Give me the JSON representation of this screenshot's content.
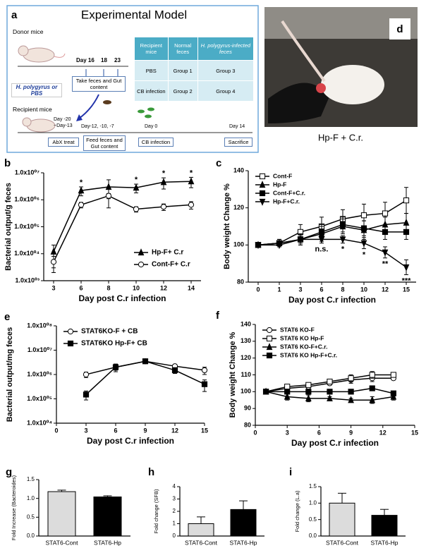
{
  "diagram": {
    "panel_label": "a",
    "title": "Experimental Model",
    "donor_label": "Donor mice",
    "donor_treatment": "H. polygyrus or PBS",
    "donor_days": [
      "Day 16",
      "18",
      "23"
    ],
    "donor_step": "Take feces and Gut content",
    "recipient_label": "Recipient mice",
    "recipient_days": [
      "Day -20",
      "~Day-13",
      "Day-12, -10, -7",
      "Day 0",
      "Day 14"
    ],
    "recipient_steps": [
      "AbX treat",
      "Feed feces and Gut content",
      "CB infection",
      "Sacrifice"
    ],
    "table": {
      "header": [
        "Recipient mice",
        "Normal feces",
        "H. polygyrus-infected feces"
      ],
      "rows": [
        [
          "PBS",
          "Group 1",
          "Group 3"
        ],
        [
          "CB infection",
          "Group 2",
          "Group 4"
        ]
      ]
    }
  },
  "photo": {
    "panel_label": "d",
    "caption": "Hp-F + C.r."
  },
  "chart_data": [
    {
      "type": "line",
      "panel_label": "b",
      "y_label": "Bacterial output/g feces",
      "x_label": "Day post C.r infection",
      "y_scale": "log",
      "categories": [
        "3",
        "6",
        "8",
        "10",
        "12",
        "14"
      ],
      "ylim": [
        1000,
        10000000
      ],
      "yticks": [
        {
          "value": 1000,
          "label": "1.0x10⁰³"
        },
        {
          "value": 10000,
          "label": "1.0x10⁰⁴"
        },
        {
          "value": 100000,
          "label": "1.0x10⁰⁵"
        },
        {
          "value": 1000000,
          "label": "1.0x10⁰⁶"
        },
        {
          "value": 10000000,
          "label": "1.0x10⁰⁷"
        }
      ],
      "legend": "lower right",
      "series": [
        {
          "name": "Hp-F+ C.r",
          "color": "#000000",
          "marker": "triangle-up",
          "values": [
            12000,
            2200000,
            3000000,
            2800000,
            4500000,
            4800000
          ],
          "errors": [
            9000,
            800000,
            2500000,
            1000000,
            2000000,
            2000000
          ]
        },
        {
          "name": "Cont-F+ C.r",
          "color": "#000000",
          "marker": "circle-open",
          "values": [
            5000,
            650000,
            1400000,
            450000,
            550000,
            650000
          ],
          "errors": [
            3000,
            150000,
            300000,
            100000,
            150000,
            200000
          ]
        }
      ],
      "significance": [
        null,
        "*",
        null,
        "*",
        "*",
        "*"
      ],
      "significance_position": "above"
    },
    {
      "type": "line",
      "panel_label": "c",
      "y_label": "Body weight Change %",
      "x_label": "Day post C.r infection",
      "categories": [
        "0",
        "1",
        "3",
        "6",
        "8",
        "10",
        "12",
        "15"
      ],
      "ylim": [
        80,
        140
      ],
      "yticks": [
        80,
        100,
        120,
        140
      ],
      "legend": "upper left",
      "series": [
        {
          "name": "Cont-F",
          "color": "#000000",
          "marker": "square-open",
          "values": [
            100,
            101,
            107,
            110,
            114,
            116,
            117,
            124
          ],
          "errors": [
            1,
            2,
            4,
            5,
            5,
            6,
            6,
            7
          ]
        },
        {
          "name": "Hp-F",
          "color": "#000000",
          "marker": "triangle-up",
          "values": [
            100,
            101,
            103,
            106,
            110,
            108,
            111,
            112
          ],
          "errors": [
            1,
            2,
            3,
            4,
            4,
            5,
            4,
            5
          ]
        },
        {
          "name": "Cont-F+C.r.",
          "color": "#000000",
          "marker": "square-filled",
          "values": [
            100,
            101,
            103,
            107,
            111,
            109,
            107,
            107
          ],
          "errors": [
            1,
            2,
            3,
            4,
            4,
            4,
            4,
            4
          ]
        },
        {
          "name": "Hp-F+C.r.",
          "color": "#000000",
          "marker": "triangle-down",
          "values": [
            100,
            100,
            103,
            103,
            103,
            101,
            96,
            88
          ],
          "errors": [
            1,
            1,
            2,
            2,
            2,
            3,
            3,
            4
          ]
        }
      ],
      "significance": [
        null,
        null,
        null,
        "n.s.",
        "*",
        "*",
        "**",
        "***"
      ],
      "significance_position": "below"
    },
    {
      "type": "line",
      "panel_label": "e",
      "y_label": "Bacterial output/mg feces",
      "x_label": "Day post C.r infection",
      "y_scale": "log",
      "x": [
        3,
        6,
        9,
        12,
        15
      ],
      "xlim": [
        0,
        15
      ],
      "xticks": [
        0,
        3,
        6,
        9,
        12,
        15
      ],
      "ylim": [
        10000,
        100000000
      ],
      "yticks": [
        {
          "value": 10000,
          "label": "1.0x10⁰⁴"
        },
        {
          "value": 100000,
          "label": "1.0x10⁰⁵"
        },
        {
          "value": 1000000,
          "label": "1.0x10⁰⁶"
        },
        {
          "value": 10000000,
          "label": "1.0x10⁰⁷"
        },
        {
          "value": 100000000,
          "label": "1.0x10⁰⁸"
        }
      ],
      "legend": "upper left",
      "series": [
        {
          "name": "STAT6KO-F + CB",
          "color": "#000000",
          "marker": "circle-open",
          "values": [
            1000000,
            2000000,
            3500000,
            2200000,
            1500000
          ],
          "errors": [
            250000,
            500000,
            600000,
            400000,
            500000
          ]
        },
        {
          "name": "STAT6KO Hp-F+ CB",
          "color": "#000000",
          "marker": "square-filled",
          "values": [
            150000,
            2000000,
            3500000,
            1500000,
            400000
          ],
          "errors": [
            60000,
            700000,
            700000,
            400000,
            200000
          ]
        }
      ]
    },
    {
      "type": "line",
      "panel_label": "f",
      "y_label": "Body weight Change %",
      "x_label": "Day post C.r infection",
      "x": [
        1,
        3,
        5,
        7,
        9,
        11,
        13
      ],
      "xlim": [
        0,
        15
      ],
      "xticks": [
        0,
        3,
        6,
        9,
        12,
        15
      ],
      "ylim": [
        80,
        140
      ],
      "yticks": [
        80,
        90,
        100,
        110,
        120,
        130,
        140
      ],
      "legend": "upper left",
      "series": [
        {
          "name": "STAT6 KO-F",
          "color": "#000000",
          "marker": "circle-open",
          "values": [
            100,
            102,
            103,
            105,
            107,
            108,
            108
          ],
          "errors": [
            1,
            1,
            1,
            1,
            2,
            2,
            1
          ]
        },
        {
          "name": "STAT6 KO Hp-F",
          "color": "#000000",
          "marker": "square-open",
          "values": [
            100,
            103,
            104,
            106,
            108,
            110,
            110
          ],
          "errors": [
            1,
            1,
            1,
            1,
            2,
            2,
            1
          ]
        },
        {
          "name": "STAT6 KO-F+C.r.",
          "color": "#000000",
          "marker": "triangle-up",
          "values": [
            100,
            97,
            96,
            96,
            95,
            95,
            97
          ],
          "errors": [
            1,
            2,
            2,
            1,
            1,
            2,
            2
          ]
        },
        {
          "name": "STAT6 KO Hp-F+C.r.",
          "color": "#000000",
          "marker": "square-filled",
          "values": [
            100,
            100,
            100,
            100,
            100,
            102,
            99
          ],
          "errors": [
            1,
            1,
            1,
            1,
            1,
            1,
            1
          ]
        }
      ]
    },
    {
      "type": "bar",
      "panel_label": "g",
      "y_label": "Fold Increase (Bacteroides)",
      "categories": [
        "STAT6-Cont",
        "STAT6-Hp"
      ],
      "values": [
        1.18,
        1.04
      ],
      "errors": [
        0.04,
        0.03
      ],
      "colors": [
        "#dcdcdc",
        "#000000"
      ],
      "ylim": [
        0,
        1.5
      ],
      "yticks": [
        {
          "value": 0,
          "label": "0.0"
        },
        {
          "value": 0.5,
          "label": "0.5"
        },
        {
          "value": 1,
          "label": "1.0"
        },
        {
          "value": 1.5,
          "label": "1.5"
        }
      ]
    },
    {
      "type": "bar",
      "panel_label": "h",
      "y_label": "Fold change (SFB)",
      "categories": [
        "STAT6-Cont",
        "STAT6-Hp"
      ],
      "values": [
        1.0,
        2.15
      ],
      "errors": [
        0.55,
        0.7
      ],
      "colors": [
        "#dcdcdc",
        "#000000"
      ],
      "ylim": [
        0,
        4
      ],
      "yticks": [
        0,
        1,
        2,
        3,
        4
      ]
    },
    {
      "type": "bar",
      "panel_label": "i",
      "y_label": "Fold change (L.a)",
      "categories": [
        "STAT6-Cont",
        "STAT6-Hp"
      ],
      "values": [
        1.0,
        0.63
      ],
      "errors": [
        0.3,
        0.18
      ],
      "colors": [
        "#dcdcdc",
        "#000000"
      ],
      "ylim": [
        0,
        1.5
      ],
      "yticks": [
        {
          "value": 0,
          "label": "0.0"
        },
        {
          "value": 0.5,
          "label": "0.5"
        },
        {
          "value": 1,
          "label": "1.0"
        },
        {
          "value": 1.5,
          "label": "1.5"
        }
      ]
    }
  ]
}
